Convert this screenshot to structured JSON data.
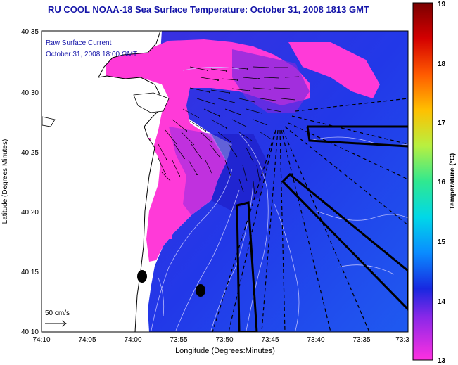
{
  "title": "RU COOL  NOAA-18  Sea Surface Temperature:  October 31, 2008 1813 GMT",
  "legend": {
    "line1": "Raw Surface Current",
    "line2": "October 31, 2008 18:00 GMT"
  },
  "scale_label": "50 cm/s",
  "axes": {
    "xlabel": "Longitude (Degrees:Minutes)",
    "ylabel": "Latitude (Degrees:Minutes)",
    "x_ticks": [
      "74:10",
      "74:05",
      "74:00",
      "73:55",
      "73:50",
      "73:45",
      "73:40",
      "73:35",
      "73:3"
    ],
    "y_ticks": [
      "40:35",
      "40:30",
      "40:25",
      "40:20",
      "40:15",
      "40:10"
    ]
  },
  "colorbar": {
    "label": "Temperature (°C)",
    "ticks": [
      "19",
      "18",
      "17",
      "16",
      "15",
      "14",
      "13"
    ],
    "min": 13,
    "max": 19
  },
  "colors": {
    "ocean_blue": "#2a3ee8",
    "warm_magenta": "#ff3ad8",
    "title_blue": "#1414a8"
  }
}
